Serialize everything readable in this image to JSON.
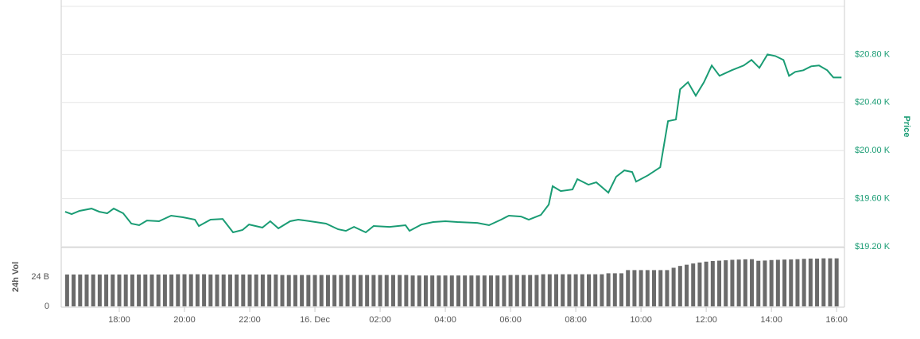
{
  "chart_data": [
    {
      "type": "line",
      "ylabel": "Price",
      "color": "#1a9c74",
      "grid": true,
      "xlim": [
        -7.78,
        16.24
      ],
      "ylim": [
        19200,
        21200
      ],
      "yticks": [
        {
          "value": 19200,
          "label": "$19.20 K"
        },
        {
          "value": 19600,
          "label": "$19.60 K"
        },
        {
          "value": 20000,
          "label": "$20.00 K"
        },
        {
          "value": 20400,
          "label": "$20.40 K"
        },
        {
          "value": 20800,
          "label": "$20.80 K"
        }
      ],
      "x": [
        -7.66,
        -7.46,
        -7.22,
        -6.85,
        -6.61,
        -6.37,
        -6.17,
        -5.88,
        -5.63,
        -5.39,
        -5.15,
        -4.78,
        -4.41,
        -4.05,
        -3.68,
        -3.56,
        -3.2,
        -2.83,
        -2.51,
        -2.22,
        -2.02,
        -1.61,
        -1.37,
        -1.12,
        -0.76,
        -0.51,
        -0.15,
        0.34,
        0.71,
        0.95,
        1.2,
        1.56,
        1.8,
        2.29,
        2.78,
        2.9,
        3.27,
        3.63,
        4.0,
        4.37,
        4.98,
        5.34,
        5.71,
        5.95,
        6.32,
        6.56,
        6.93,
        7.17,
        7.29,
        7.54,
        7.9,
        8.05,
        8.39,
        8.63,
        9.0,
        9.24,
        9.49,
        9.73,
        9.85,
        10.22,
        10.59,
        10.83,
        11.07,
        11.2,
        11.44,
        11.68,
        11.93,
        12.17,
        12.41,
        12.78,
        13.15,
        13.39,
        13.63,
        13.88,
        14.12,
        14.37,
        14.54,
        14.73,
        14.98,
        15.22,
        15.46,
        15.71,
        15.9,
        16.15
      ],
      "values": [
        19491,
        19471,
        19498,
        19517,
        19491,
        19478,
        19517,
        19478,
        19392,
        19379,
        19418,
        19412,
        19458,
        19445,
        19425,
        19372,
        19425,
        19431,
        19319,
        19339,
        19385,
        19359,
        19412,
        19352,
        19412,
        19425,
        19412,
        19392,
        19345,
        19332,
        19365,
        19319,
        19372,
        19365,
        19379,
        19332,
        19385,
        19405,
        19412,
        19405,
        19398,
        19379,
        19425,
        19458,
        19451,
        19425,
        19464,
        19550,
        19703,
        19663,
        19676,
        19762,
        19716,
        19736,
        19650,
        19782,
        19835,
        19822,
        19742,
        19795,
        19861,
        20245,
        20258,
        20509,
        20569,
        20456,
        20569,
        20708,
        20622,
        20668,
        20708,
        20754,
        20688,
        20800,
        20787,
        20754,
        20622,
        20655,
        20668,
        20701,
        20708,
        20668,
        20608,
        20608
      ]
    },
    {
      "type": "bar",
      "ylabel": "24h Vol",
      "color": "#6b6b6b",
      "xlim": [
        -7.78,
        16.24
      ],
      "ylim": [
        0,
        47.4
      ],
      "yticks": [
        0,
        {
          "value": 24,
          "label": "24 B"
        }
      ],
      "xticks": [
        {
          "value": -6,
          "label": "18:00"
        },
        {
          "value": -4,
          "label": "20:00"
        },
        {
          "value": -2,
          "label": "22:00"
        },
        {
          "value": 0,
          "label": "16. Dec"
        },
        {
          "value": 2,
          "label": "02:00"
        },
        {
          "value": 4,
          "label": "04:00"
        },
        {
          "value": 6,
          "label": "06:00"
        },
        {
          "value": 8,
          "label": "08:00"
        },
        {
          "value": 10,
          "label": "10:00"
        },
        {
          "value": 12,
          "label": "12:00"
        },
        {
          "value": 14,
          "label": "14:00"
        },
        {
          "value": 16,
          "label": "16:00"
        }
      ],
      "x": [
        -7.6,
        -7.4,
        -7.2,
        -7,
        -6.8,
        -6.6,
        -6.4,
        -6.2,
        -6,
        -5.8,
        -5.6,
        -5.4,
        -5.2,
        -5,
        -4.8,
        -4.6,
        -4.4,
        -4.2,
        -4,
        -3.8,
        -3.6,
        -3.4,
        -3.2,
        -3,
        -2.8,
        -2.6,
        -2.4,
        -2.2,
        -2,
        -1.8,
        -1.6,
        -1.4,
        -1.2,
        -1,
        -0.8,
        -0.6,
        -0.4,
        -0.2,
        0,
        0.2,
        0.4,
        0.6,
        0.8,
        1,
        1.2,
        1.4,
        1.6,
        1.8,
        2,
        2.2,
        2.4,
        2.6,
        2.8,
        3,
        3.2,
        3.4,
        3.6,
        3.8,
        4,
        4.2,
        4.4,
        4.6,
        4.8,
        5,
        5.2,
        5.4,
        5.6,
        5.8,
        6,
        6.2,
        6.4,
        6.6,
        6.8,
        7,
        7.2,
        7.4,
        7.6,
        7.8,
        8,
        8.2,
        8.4,
        8.6,
        8.8,
        9,
        9.2,
        9.4,
        9.6,
        9.8,
        10,
        10.2,
        10.4,
        10.6,
        10.8,
        11,
        11.2,
        11.4,
        11.6,
        11.8,
        12,
        12.2,
        12.4,
        12.6,
        12.8,
        13,
        13.2,
        13.4,
        13.6,
        13.8,
        14,
        14.2,
        14.4,
        14.6,
        14.8,
        15,
        15.2,
        15.4,
        15.6,
        15.8,
        16
      ],
      "values": [
        26,
        26,
        26,
        26,
        26,
        26,
        26,
        26,
        26,
        26,
        26,
        26,
        26,
        26,
        26,
        26,
        26,
        26.2,
        26.2,
        26.2,
        26.2,
        26.2,
        26,
        26,
        26,
        26,
        26,
        26,
        26,
        26,
        26,
        26,
        26,
        25.6,
        25.6,
        25.6,
        25.6,
        25.6,
        25.6,
        25.6,
        25.6,
        25.6,
        25.6,
        25.6,
        25.6,
        25.6,
        25.6,
        25.6,
        25.6,
        25.6,
        25.6,
        25.6,
        25.6,
        25.2,
        25.2,
        25.2,
        25.2,
        25.2,
        25.2,
        25.2,
        25.2,
        25.2,
        25.2,
        25.2,
        25.2,
        25.2,
        25.2,
        25.2,
        25.6,
        25.6,
        25.6,
        25.6,
        25.6,
        26.2,
        26.2,
        26.2,
        26.2,
        26.2,
        26.2,
        26.2,
        26.2,
        26.2,
        26.2,
        27,
        27,
        27,
        29.6,
        29.6,
        29.6,
        29.6,
        29.6,
        29.6,
        29.6,
        31.5,
        33,
        34,
        35,
        35.8,
        36.5,
        37,
        37.3,
        37.6,
        38,
        38.2,
        38.4,
        38.5,
        37.2,
        37.4,
        37.8,
        38,
        38.2,
        38.3,
        38.5,
        38.8,
        39,
        39,
        39.2,
        39.2,
        39.2
      ]
    }
  ]
}
